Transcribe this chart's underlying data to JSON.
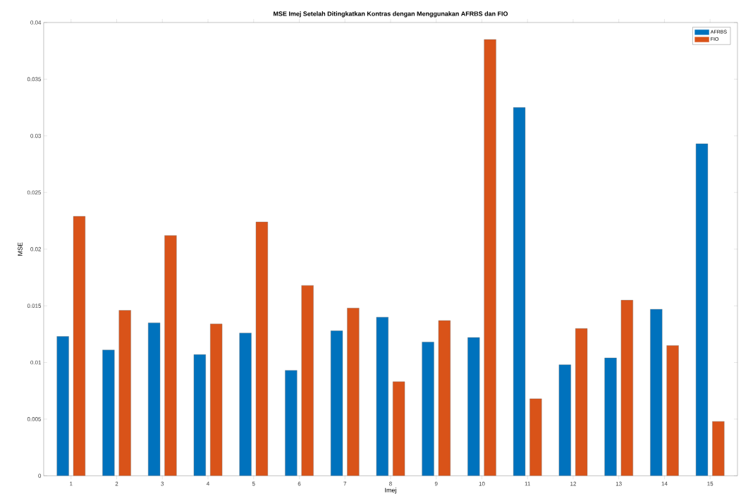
{
  "chart_data": {
    "type": "bar",
    "title": "MSE Imej Setelah Ditingkatkan Kontras dengan Menggunakan AFRBS dan FIO",
    "xlabel": "Imej",
    "ylabel": "MSE",
    "categories": [
      "1",
      "2",
      "3",
      "4",
      "5",
      "6",
      "7",
      "8",
      "9",
      "10",
      "11",
      "12",
      "13",
      "14",
      "15"
    ],
    "series": [
      {
        "name": "AFRBS",
        "color": "#0072bd",
        "values": [
          0.0123,
          0.0111,
          0.0135,
          0.0107,
          0.0126,
          0.0093,
          0.0128,
          0.014,
          0.0118,
          0.0122,
          0.0325,
          0.0098,
          0.0104,
          0.0147,
          0.0293
        ]
      },
      {
        "name": "FIO",
        "color": "#d95319",
        "values": [
          0.0229,
          0.0146,
          0.0212,
          0.0134,
          0.0224,
          0.0168,
          0.0148,
          0.0083,
          0.0137,
          0.0385,
          0.0068,
          0.013,
          0.0155,
          0.0115,
          0.0048
        ]
      }
    ],
    "ylim": [
      0,
      0.04
    ],
    "yticks": [
      0,
      0.005,
      0.01,
      0.015,
      0.02,
      0.025,
      0.03,
      0.035,
      0.04
    ],
    "legend": "top right",
    "grid": false
  }
}
